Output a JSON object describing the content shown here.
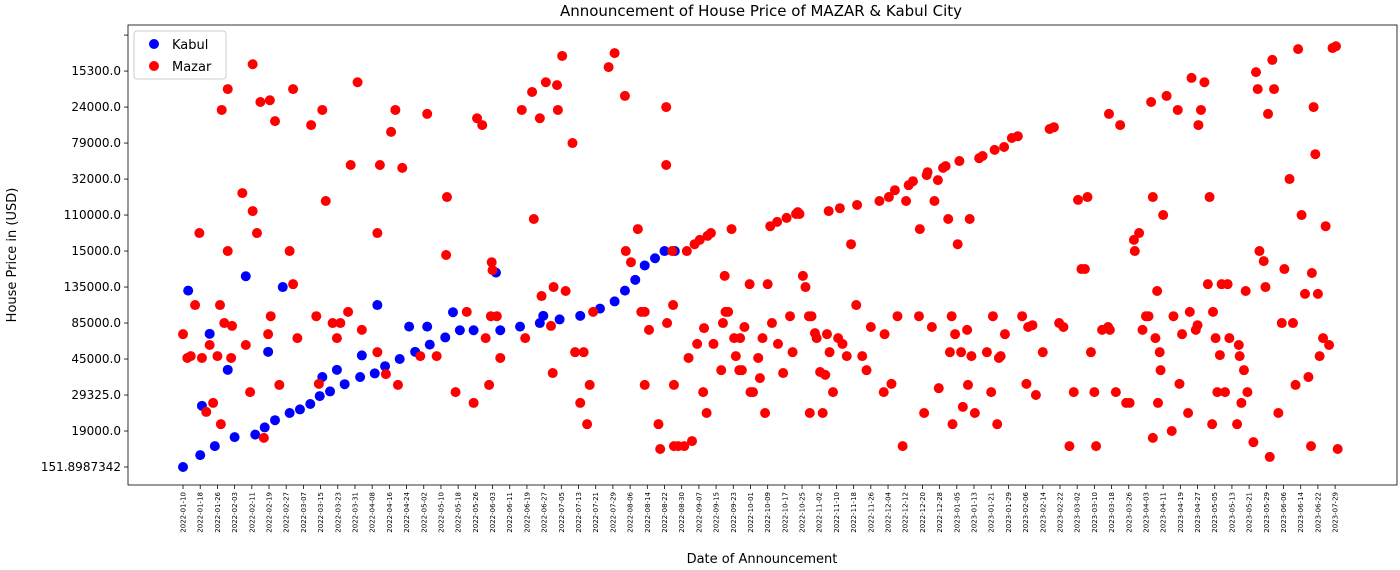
{
  "chart_data": {
    "type": "scatter",
    "title": "Announcement of House Price of MAZAR & Kabul City",
    "x_label": "Date of Announcement",
    "y_label": "House Price in (USD)",
    "legend": "upper left",
    "xlim": [
      -6.4,
      141.2
    ],
    "ylim": [
      -0.5,
      12.28
    ],
    "yticks": [
      {
        "value": 0,
        "label": "151.8987342"
      },
      {
        "value": 1,
        "label": "19000.0"
      },
      {
        "value": 2,
        "label": "29325.0"
      },
      {
        "value": 3,
        "label": "45000.0"
      },
      {
        "value": 4,
        "label": "85000.0"
      },
      {
        "value": 5,
        "label": "135000.0"
      },
      {
        "value": 6,
        "label": "15000.0"
      },
      {
        "value": 7,
        "label": "110000.0"
      },
      {
        "value": 8,
        "label": "32000.0"
      },
      {
        "value": 9,
        "label": "79000.0"
      },
      {
        "value": 10,
        "label": "24000.0"
      },
      {
        "value": 11,
        "label": "15300.0"
      },
      {
        "value": 12,
        "label": null
      }
    ],
    "xticks": [
      {
        "value": 0,
        "label": "2022-01-10"
      },
      {
        "value": 2,
        "label": "2022-01-18"
      },
      {
        "value": 4,
        "label": "2022-01-26"
      },
      {
        "value": 6,
        "label": "2022-02-03"
      },
      {
        "value": 8,
        "label": "2022-02-11"
      },
      {
        "value": 10,
        "label": "2022-02-19"
      },
      {
        "value": 12,
        "label": "2022-02-27"
      },
      {
        "value": 14,
        "label": "2022-03-07"
      },
      {
        "value": 16,
        "label": "2022-03-15"
      },
      {
        "value": 18,
        "label": "2022-03-23"
      },
      {
        "value": 20,
        "label": "2022-03-31"
      },
      {
        "value": 22,
        "label": "2022-04-08"
      },
      {
        "value": 24,
        "label": "2022-04-16"
      },
      {
        "value": 26,
        "label": "2022-04-24"
      },
      {
        "value": 28,
        "label": "2022-05-02"
      },
      {
        "value": 30,
        "label": "2022-05-10"
      },
      {
        "value": 32,
        "label": "2022-05-18"
      },
      {
        "value": 34,
        "label": "2022-05-26"
      },
      {
        "value": 36,
        "label": "2022-06-03"
      },
      {
        "value": 38,
        "label": "2022-06-11"
      },
      {
        "value": 40,
        "label": "2022-06-19"
      },
      {
        "value": 42,
        "label": "2022-06-27"
      },
      {
        "value": 44,
        "label": "2022-07-05"
      },
      {
        "value": 46,
        "label": "2022-07-13"
      },
      {
        "value": 48,
        "label": "2022-07-21"
      },
      {
        "value": 50,
        "label": "2022-07-29"
      },
      {
        "value": 52,
        "label": "2022-08-06"
      },
      {
        "value": 54,
        "label": "2022-08-14"
      },
      {
        "value": 56,
        "label": "2022-08-22"
      },
      {
        "value": 58,
        "label": "2022-08-30"
      },
      {
        "value": 60,
        "label": "2022-09-07"
      },
      {
        "value": 62,
        "label": "2022-09-15"
      },
      {
        "value": 64,
        "label": "2022-09-23"
      },
      {
        "value": 66,
        "label": "2022-10-01"
      },
      {
        "value": 68,
        "label": "2022-10-09"
      },
      {
        "value": 70,
        "label": "2022-10-17"
      },
      {
        "value": 72,
        "label": "2022-10-25"
      },
      {
        "value": 74,
        "label": "2022-11-02"
      },
      {
        "value": 76,
        "label": "2022-11-10"
      },
      {
        "value": 78,
        "label": "2022-11-18"
      },
      {
        "value": 80,
        "label": "2022-11-26"
      },
      {
        "value": 82,
        "label": "2022-12-04"
      },
      {
        "value": 84,
        "label": "2022-12-12"
      },
      {
        "value": 86,
        "label": "2022-12-20"
      },
      {
        "value": 88,
        "label": "2022-12-28"
      },
      {
        "value": 90,
        "label": "2023-01-05"
      },
      {
        "value": 92,
        "label": "2023-01-13"
      },
      {
        "value": 94,
        "label": "2023-01-21"
      },
      {
        "value": 96,
        "label": "2023-01-29"
      },
      {
        "value": 98,
        "label": "2023-02-06"
      },
      {
        "value": 100,
        "label": "2023-02-14"
      },
      {
        "value": 102,
        "label": "2023-02-22"
      },
      {
        "value": 104,
        "label": "2023-03-02"
      },
      {
        "value": 106,
        "label": "2023-03-10"
      },
      {
        "value": 108,
        "label": "2023-03-18"
      },
      {
        "value": 110,
        "label": "2023-03-26"
      },
      {
        "value": 112,
        "label": "2023-04-03"
      },
      {
        "value": 114,
        "label": "2023-04-11"
      },
      {
        "value": 116,
        "label": "2023-04-19"
      },
      {
        "value": 118,
        "label": "2023-04-27"
      },
      {
        "value": 120,
        "label": "2023-05-05"
      },
      {
        "value": 122,
        "label": "2023-05-13"
      },
      {
        "value": 124,
        "label": "2023-05-21"
      },
      {
        "value": 126,
        "label": "2023-05-29"
      },
      {
        "value": 128,
        "label": "2023-06-06"
      },
      {
        "value": 130,
        "label": "2023-06-14"
      },
      {
        "value": 132,
        "label": "2023-06-22"
      },
      {
        "value": 134,
        "label": "2023-07-29"
      }
    ],
    "series": [
      {
        "name": "Kabul",
        "color": "#0000ff",
        "x": [
          0,
          2,
          3.7,
          6,
          8.4,
          9.5,
          10.7,
          12.4,
          13.6,
          14.8,
          15.9,
          17.1,
          18.8,
          20.6,
          22.3,
          23.5,
          25.2,
          27,
          28.7,
          30.5,
          32.2,
          33.8,
          36.9,
          39.2,
          41.5,
          43.8,
          46.2,
          48.5,
          50.2,
          51.4,
          52.6,
          53.7,
          54.9,
          56,
          57.2,
          0.6,
          2.2,
          3.1,
          5.2,
          7.3,
          9.9,
          11.6,
          16.2,
          17.9,
          20.8,
          22.6,
          26.3,
          28.4,
          31.4,
          36.4,
          41.9
        ],
        "values": [
          0,
          0.33,
          0.58,
          0.83,
          0.9,
          1.1,
          1.3,
          1.5,
          1.6,
          1.75,
          1.97,
          2.1,
          2.3,
          2.5,
          2.6,
          2.8,
          3.0,
          3.2,
          3.4,
          3.6,
          3.8,
          3.8,
          3.8,
          3.9,
          4.0,
          4.1,
          4.2,
          4.4,
          4.6,
          4.9,
          5.2,
          5.6,
          5.8,
          6.0,
          6.0,
          4.9,
          1.7,
          3.7,
          2.7,
          5.3,
          3.2,
          5.0,
          2.5,
          2.7,
          3.1,
          4.5,
          3.9,
          3.9,
          4.3,
          5.4,
          4.2
        ]
      },
      {
        "name": "Mazar",
        "color": "#ff0000",
        "x": [
          0,
          0.5,
          0.9,
          1.4,
          1.9,
          2.2,
          2.7,
          3.1,
          3.5,
          4.0,
          4.3,
          4.4,
          4.5,
          4.8,
          5.2,
          5.2,
          5.6,
          5.7,
          6.9,
          7.3,
          7.8,
          8.1,
          8.1,
          8.6,
          9.0,
          9.4,
          9.9,
          10.1,
          10.2,
          10.7,
          11.2,
          12.4,
          12.8,
          12.8,
          13.3,
          14.9,
          15.5,
          15.8,
          16.2,
          16.6,
          17.4,
          17.9,
          18.3,
          19.2,
          19.5,
          20.3,
          20.8,
          22.6,
          22.6,
          22.9,
          23.6,
          24.2,
          24.7,
          25.0,
          25.5,
          27.6,
          28.4,
          29.5,
          30.6,
          30.7,
          31.7,
          33.0,
          33.8,
          34.2,
          34.8,
          35.2,
          35.6,
          35.8,
          35.9,
          36.0,
          36.5,
          36.9,
          39.4,
          39.8,
          40.6,
          40.8,
          41.5,
          41.7,
          42.2,
          42.8,
          43.0,
          43.1,
          43.5,
          43.6,
          44.1,
          44.5,
          45.3,
          45.6,
          46.2,
          46.6,
          47.0,
          47.3,
          47.7,
          49.5,
          50.2,
          51.4,
          51.5,
          52.1,
          52.9,
          53.3,
          53.7,
          54.2,
          53.7,
          55.3,
          55.5,
          56.2,
          56.2,
          56.3,
          56.9,
          57.0,
          57.1,
          57.1,
          57.6,
          58.3,
          58.6,
          59.2,
          58.8,
          59.5,
          59.8,
          60.1,
          60.5,
          60.6,
          60.9,
          61.0,
          61.4,
          61.7,
          62.6,
          62.8,
          63.0,
          63.1,
          63.4,
          63.8,
          64.1,
          64.3,
          64.7,
          64.8,
          65.0,
          65.3,
          65.9,
          66.0,
          66.3,
          66.9,
          67.1,
          67.4,
          67.7,
          68.0,
          68.3,
          68.5,
          69.1,
          69.2,
          69.8,
          70.2,
          70.6,
          70.9,
          71.3,
          71.5,
          71.7,
          72.1,
          72.4,
          72.8,
          72.9,
          73.1,
          73.5,
          73.7,
          74.1,
          74.4,
          74.7,
          74.9,
          75.1,
          75.2,
          75.6,
          76.2,
          76.4,
          76.7,
          77.2,
          77.7,
          78.3,
          78.4,
          79.0,
          79.5,
          80.0,
          81.0,
          81.5,
          81.6,
          82.1,
          82.4,
          82.8,
          83.1,
          83.7,
          84.1,
          84.4,
          84.9,
          85.6,
          85.7,
          86.2,
          86.5,
          86.6,
          87.1,
          87.4,
          87.8,
          87.9,
          88.4,
          88.7,
          89.0,
          89.2,
          89.4,
          89.5,
          89.8,
          90.1,
          90.3,
          90.5,
          90.7,
          91.2,
          91.3,
          91.5,
          91.7,
          92.1,
          92.6,
          93.0,
          93.5,
          94.0,
          94.2,
          94.4,
          94.7,
          94.9,
          95.1,
          95.5,
          95.6,
          96.4,
          97.1,
          97.6,
          98.1,
          98.3,
          98.8,
          99.2,
          100.0,
          100.8,
          101.3,
          101.9,
          102.4,
          103.1,
          103.6,
          104.1,
          104.5,
          104.9,
          105.2,
          105.6,
          106.0,
          106.2,
          106.9,
          107.6,
          107.7,
          107.8,
          108.5,
          109.0,
          109.7,
          110.1,
          110.6,
          110.7,
          111.2,
          111.6,
          112.0,
          112.3,
          112.6,
          112.8,
          112.8,
          113.1,
          113.3,
          113.4,
          113.6,
          113.7,
          114.0,
          114.4,
          115.0,
          115.2,
          115.7,
          115.9,
          116.2,
          116.9,
          117.1,
          117.3,
          117.8,
          118.0,
          118.1,
          118.4,
          118.8,
          119.2,
          119.4,
          119.7,
          119.8,
          120.1,
          120.3,
          120.6,
          120.8,
          121.2,
          121.5,
          121.7,
          122.6,
          122.8,
          122.9,
          123.1,
          123.4,
          123.6,
          123.8,
          124.5,
          124.8,
          125.0,
          125.2,
          125.7,
          125.9,
          126.2,
          126.4,
          126.7,
          126.9,
          127.4,
          127.8,
          128.1,
          128.7,
          129.1,
          129.4,
          129.7,
          130.1,
          130.5,
          130.9,
          131.2,
          131.3,
          131.5,
          131.7,
          132.0,
          132.2,
          132.6,
          132.9,
          133.3,
          133.7,
          134.1,
          134.3
        ],
        "values": [
          3.69,
          3.03,
          3.08,
          4.5,
          6.5,
          3.03,
          1.53,
          3.39,
          1.78,
          3.08,
          4.5,
          1.19,
          9.92,
          4.0,
          10.5,
          6.0,
          3.03,
          3.92,
          7.61,
          3.39,
          2.08,
          7.11,
          11.19,
          6.5,
          10.14,
          0.81,
          3.69,
          10.19,
          4.19,
          9.61,
          2.28,
          6.0,
          10.5,
          5.08,
          3.58,
          9.5,
          4.19,
          2.31,
          9.92,
          7.39,
          4.0,
          3.58,
          4.0,
          4.31,
          8.39,
          10.69,
          3.81,
          6.5,
          3.19,
          8.39,
          2.58,
          9.31,
          9.92,
          2.28,
          8.31,
          3.08,
          9.81,
          3.08,
          5.89,
          7.5,
          2.08,
          4.31,
          1.78,
          9.69,
          9.5,
          3.58,
          2.28,
          4.19,
          5.69,
          5.47,
          4.19,
          3.03,
          9.92,
          3.58,
          10.42,
          6.89,
          9.69,
          4.75,
          10.69,
          3.92,
          2.61,
          5.0,
          10.61,
          9.92,
          11.42,
          4.89,
          9.0,
          3.19,
          1.78,
          3.19,
          1.19,
          2.28,
          4.31,
          11.11,
          11.5,
          10.31,
          6.0,
          5.69,
          6.61,
          4.31,
          4.31,
          3.81,
          2.28,
          1.19,
          0.5,
          8.39,
          10.0,
          4.0,
          6.0,
          4.5,
          2.28,
          0.58,
          0.58,
          0.58,
          6.0,
          0.72,
          3.03,
          6.19,
          3.42,
          6.31,
          2.08,
          3.86,
          1.5,
          6.42,
          6.5,
          3.42,
          2.69,
          4.0,
          5.31,
          4.31,
          4.31,
          6.61,
          3.58,
          3.08,
          2.69,
          3.58,
          2.69,
          3.89,
          5.08,
          2.08,
          2.08,
          3.03,
          2.47,
          3.58,
          1.5,
          5.08,
          6.69,
          4.0,
          6.81,
          3.42,
          2.61,
          6.92,
          4.19,
          3.19,
          7.03,
          7.08,
          7.03,
          5.31,
          5.0,
          4.19,
          1.5,
          4.19,
          3.72,
          3.58,
          2.64,
          1.5,
          2.56,
          3.69,
          7.11,
          3.19,
          2.08,
          3.58,
          7.19,
          3.42,
          3.08,
          6.19,
          4.5,
          7.28,
          3.08,
          2.69,
          3.89,
          7.39,
          2.08,
          3.69,
          7.5,
          2.31,
          7.69,
          4.19,
          0.58,
          7.39,
          7.83,
          7.94,
          4.19,
          6.61,
          1.5,
          8.11,
          8.19,
          3.89,
          7.39,
          7.97,
          2.19,
          8.31,
          8.36,
          6.89,
          3.19,
          4.19,
          1.19,
          3.69,
          6.19,
          8.5,
          3.19,
          1.67,
          3.81,
          2.28,
          6.89,
          3.08,
          1.5,
          8.58,
          8.64,
          3.19,
          2.08,
          4.19,
          8.81,
          1.19,
          3.03,
          3.08,
          8.89,
          3.69,
          9.14,
          9.19,
          4.19,
          2.31,
          3.89,
          3.94,
          2.0,
          3.19,
          9.39,
          9.44,
          4.0,
          3.89,
          0.58,
          2.08,
          7.42,
          5.5,
          5.5,
          7.5,
          3.19,
          2.08,
          0.58,
          3.81,
          3.89,
          9.81,
          3.81,
          2.08,
          9.5,
          1.78,
          1.78,
          6.31,
          6.0,
          6.5,
          3.81,
          4.19,
          4.19,
          10.14,
          7.5,
          0.81,
          3.58,
          4.89,
          1.78,
          3.19,
          2.69,
          7.0,
          10.31,
          1.0,
          4.19,
          9.92,
          2.31,
          3.69,
          1.5,
          4.31,
          10.81,
          3.81,
          3.94,
          9.5,
          9.92,
          10.69,
          5.08,
          7.5,
          1.19,
          4.31,
          3.58,
          2.08,
          3.11,
          5.08,
          2.08,
          5.08,
          3.58,
          1.19,
          3.39,
          3.08,
          1.78,
          2.69,
          4.89,
          2.08,
          0.69,
          10.97,
          10.5,
          6.0,
          5.72,
          5.0,
          9.81,
          0.28,
          11.31,
          10.5,
          1.5,
          4.0,
          5.5,
          8.0,
          4.0,
          2.28,
          11.61,
          7.0,
          4.81,
          2.5,
          0.58,
          5.39,
          10.0,
          8.69,
          4.81,
          3.08,
          3.58,
          6.69,
          3.39,
          11.64,
          11.69,
          0.5
        ]
      }
    ]
  }
}
